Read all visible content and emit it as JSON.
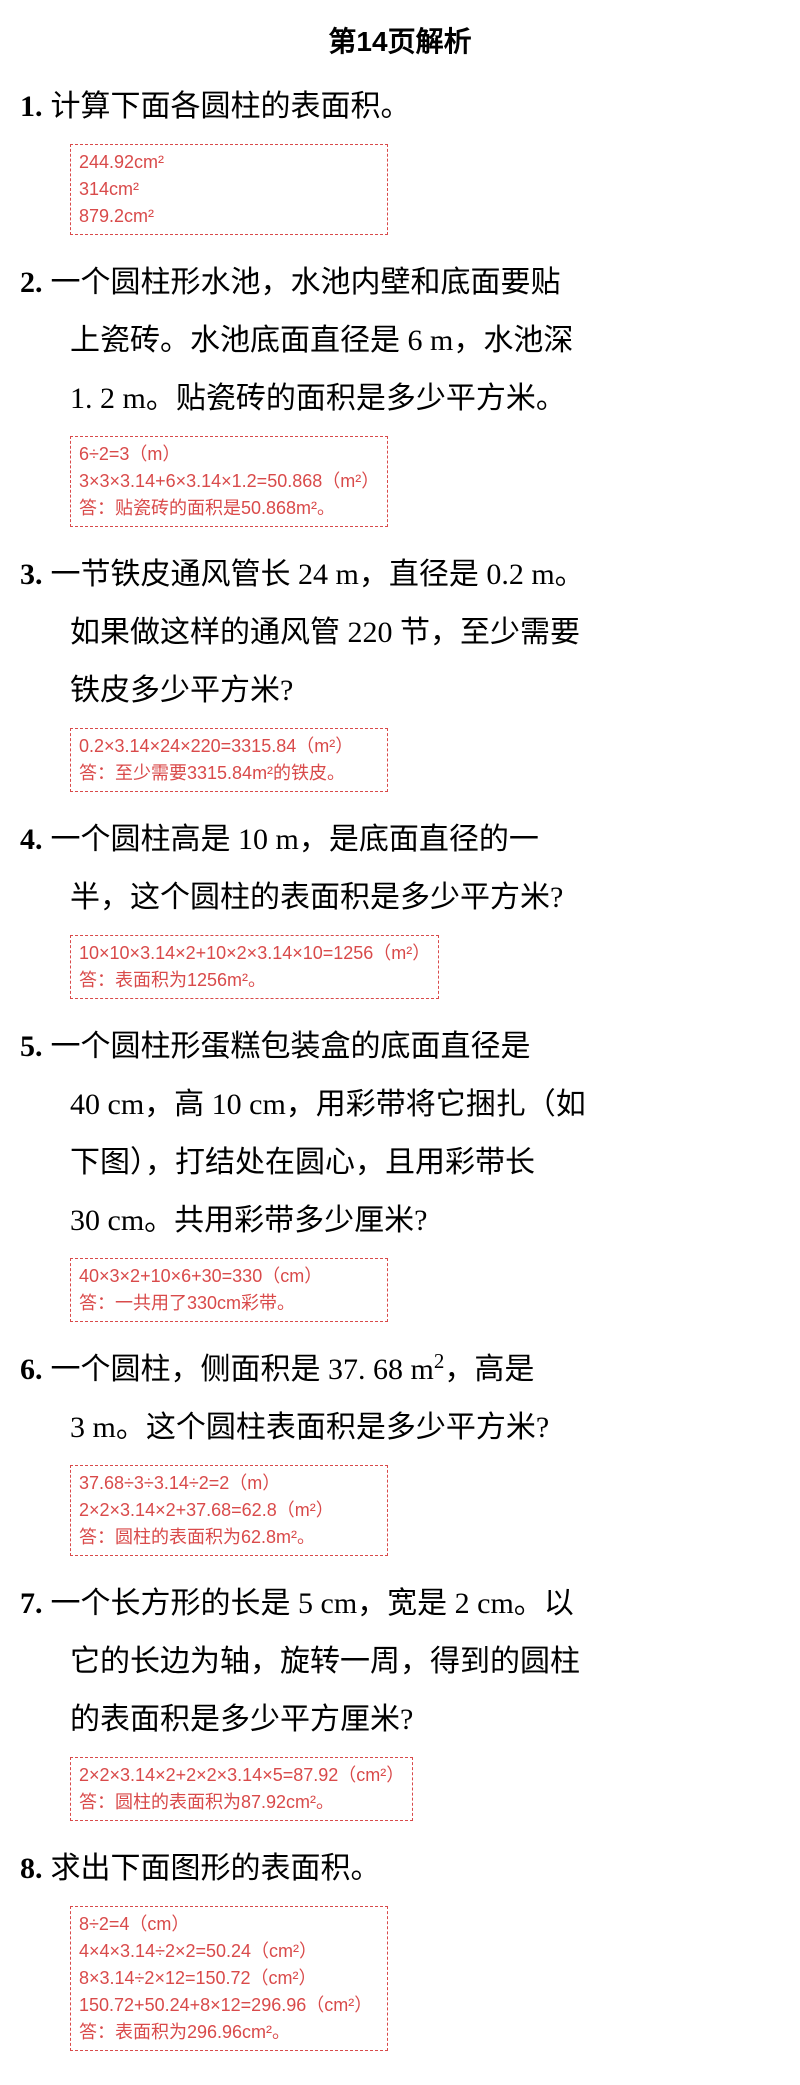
{
  "title": "第14页解析",
  "problems": [
    {
      "num": "1.",
      "lines": [
        "计算下面各圆柱的表面积。"
      ],
      "answers": [
        "244.92cm²",
        "314cm²",
        "879.2cm²"
      ]
    },
    {
      "num": "2.",
      "lines": [
        "一个圆柱形水池，水池内壁和底面要贴",
        "上瓷砖。水池底面直径是 6 m，水池深",
        "1. 2 m。贴瓷砖的面积是多少平方米。"
      ],
      "answers": [
        "6÷2=3（m）",
        "3×3×3.14+6×3.14×1.2=50.868（m²）",
        "答：贴瓷砖的面积是50.868m²。"
      ]
    },
    {
      "num": "3.",
      "lines": [
        "一节铁皮通风管长 24 m，直径是 0.2 m。",
        "如果做这样的通风管 220 节，至少需要",
        "铁皮多少平方米?"
      ],
      "answers": [
        "0.2×3.14×24×220=3315.84（m²）",
        "答：至少需要3315.84m²的铁皮。"
      ]
    },
    {
      "num": "4.",
      "lines": [
        "一个圆柱高是 10 m，是底面直径的一",
        "半，这个圆柱的表面积是多少平方米?"
      ],
      "answers": [
        "10×10×3.14×2+10×2×3.14×10=1256（m²）",
        "答：表面积为1256m²。"
      ]
    },
    {
      "num": "5.",
      "lines": [
        "一个圆柱形蛋糕包装盒的底面直径是",
        "40 cm，高 10 cm，用彩带将它捆扎（如",
        "下图），打结处在圆心，且用彩带长",
        "30 cm。共用彩带多少厘米?"
      ],
      "answers": [
        "40×3×2+10×6+30=330（cm）",
        "答：一共用了330cm彩带。"
      ]
    },
    {
      "num": "6.",
      "lines": [
        "一个圆柱，侧面积是 37. 68 m²，高是",
        "3 m。这个圆柱表面积是多少平方米?"
      ],
      "answers": [
        "37.68÷3÷3.14÷2=2（m）",
        "2×2×3.14×2+37.68=62.8（m²）",
        "答：圆柱的表面积为62.8m²。"
      ]
    },
    {
      "num": "7.",
      "lines": [
        "一个长方形的长是 5 cm，宽是 2 cm。以",
        "它的长边为轴，旋转一周，得到的圆柱",
        "的表面积是多少平方厘米?"
      ],
      "answers": [
        "2×2×3.14×2+2×2×3.14×5=87.92（cm²）",
        "答：圆柱的表面积为87.92cm²。"
      ]
    },
    {
      "num": "8.",
      "lines": [
        "求出下面图形的表面积。"
      ],
      "answers": [
        "8÷2=4（cm）",
        "4×4×3.14÷2×2=50.24（cm²）",
        "8×3.14÷2×12=150.72（cm²）",
        "150.72+50.24+8×12=296.96（cm²）",
        "答：表面积为296.96cm²。"
      ]
    }
  ]
}
